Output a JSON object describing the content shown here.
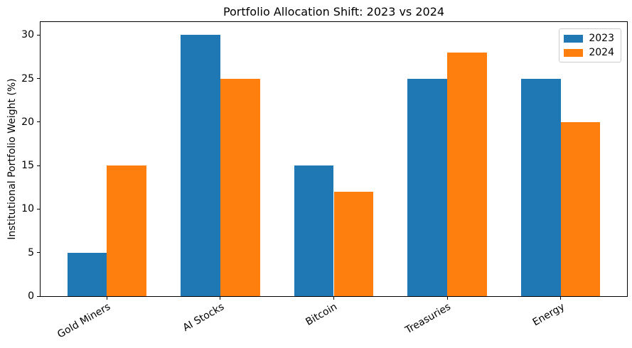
{
  "chart_data": {
    "type": "bar",
    "title": "Portfolio Allocation Shift: 2023 vs 2024",
    "xlabel": "",
    "ylabel": "Institutional Portfolio Weight (%)",
    "categories": [
      "Gold Miners",
      "AI Stocks",
      "Bitcoin",
      "Treasuries",
      "Energy"
    ],
    "series": [
      {
        "name": "2023",
        "color": "#1f77b4",
        "offset": -0.175,
        "values": [
          5,
          30,
          15,
          25,
          25
        ]
      },
      {
        "name": "2024",
        "color": "#ff7f0e",
        "offset": 0.175,
        "values": [
          15,
          25,
          12,
          28,
          20
        ]
      }
    ],
    "bar_width": 0.35,
    "yticks": [
      0,
      5,
      10,
      15,
      20,
      25,
      30
    ],
    "ylim": [
      0,
      31.5
    ],
    "xlim": [
      -0.585,
      4.585
    ],
    "grid": false,
    "legend_position": "upper right",
    "x_tick_rotation": 30
  }
}
